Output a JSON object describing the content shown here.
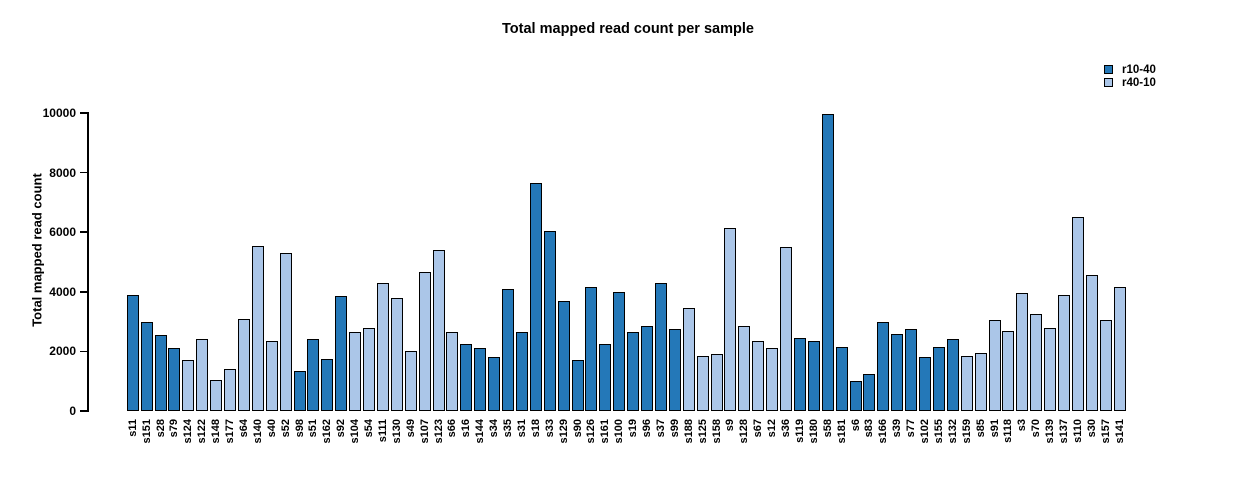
{
  "title": "Total mapped read count per sample",
  "chart_data": {
    "type": "bar",
    "title": "Total mapped read count per sample",
    "xlabel": "",
    "ylabel": "Total mapped read count",
    "ylim": [
      0,
      10000
    ],
    "yticks": [
      0,
      2000,
      4000,
      6000,
      8000,
      10000
    ],
    "grid": false,
    "legend": {
      "position": "top-right",
      "entries": [
        {
          "name": "r10-40",
          "color": "#2478b8"
        },
        {
          "name": "r40-10",
          "color": "#abc6e8"
        }
      ]
    },
    "bars": [
      {
        "label": "s11",
        "value": 3900,
        "series": "r10-40"
      },
      {
        "label": "s151",
        "value": 3000,
        "series": "r10-40"
      },
      {
        "label": "s28",
        "value": 2550,
        "series": "r10-40"
      },
      {
        "label": "s79",
        "value": 2100,
        "series": "r10-40"
      },
      {
        "label": "s124",
        "value": 1700,
        "series": "r40-10"
      },
      {
        "label": "s122",
        "value": 2400,
        "series": "r40-10"
      },
      {
        "label": "s148",
        "value": 1050,
        "series": "r40-10"
      },
      {
        "label": "s177",
        "value": 1400,
        "series": "r40-10"
      },
      {
        "label": "s64",
        "value": 3100,
        "series": "r40-10"
      },
      {
        "label": "s140",
        "value": 5550,
        "series": "r40-10"
      },
      {
        "label": "s40",
        "value": 2350,
        "series": "r40-10"
      },
      {
        "label": "s52",
        "value": 5300,
        "series": "r40-10"
      },
      {
        "label": "s98",
        "value": 1350,
        "series": "r10-40"
      },
      {
        "label": "s51",
        "value": 2400,
        "series": "r10-40"
      },
      {
        "label": "s162",
        "value": 1750,
        "series": "r10-40"
      },
      {
        "label": "s92",
        "value": 3850,
        "series": "r10-40"
      },
      {
        "label": "s104",
        "value": 2650,
        "series": "r40-10"
      },
      {
        "label": "s54",
        "value": 2800,
        "series": "r40-10"
      },
      {
        "label": "s111",
        "value": 4300,
        "series": "r40-10"
      },
      {
        "label": "s130",
        "value": 3800,
        "series": "r40-10"
      },
      {
        "label": "s49",
        "value": 2000,
        "series": "r40-10"
      },
      {
        "label": "s107",
        "value": 4650,
        "series": "r40-10"
      },
      {
        "label": "s123",
        "value": 5400,
        "series": "r40-10"
      },
      {
        "label": "s66",
        "value": 2650,
        "series": "r40-10"
      },
      {
        "label": "s16",
        "value": 2250,
        "series": "r10-40"
      },
      {
        "label": "s144",
        "value": 2100,
        "series": "r10-40"
      },
      {
        "label": "s34",
        "value": 1800,
        "series": "r10-40"
      },
      {
        "label": "s35",
        "value": 4100,
        "series": "r10-40"
      },
      {
        "label": "s31",
        "value": 2650,
        "series": "r10-40"
      },
      {
        "label": "s18",
        "value": 7650,
        "series": "r10-40"
      },
      {
        "label": "s33",
        "value": 6050,
        "series": "r10-40"
      },
      {
        "label": "s129",
        "value": 3700,
        "series": "r10-40"
      },
      {
        "label": "s90",
        "value": 1700,
        "series": "r10-40"
      },
      {
        "label": "s126",
        "value": 4150,
        "series": "r10-40"
      },
      {
        "label": "s161",
        "value": 2250,
        "series": "r10-40"
      },
      {
        "label": "s100",
        "value": 4000,
        "series": "r10-40"
      },
      {
        "label": "s19",
        "value": 2650,
        "series": "r10-40"
      },
      {
        "label": "s96",
        "value": 2850,
        "series": "r10-40"
      },
      {
        "label": "s37",
        "value": 4300,
        "series": "r10-40"
      },
      {
        "label": "s99",
        "value": 2750,
        "series": "r10-40"
      },
      {
        "label": "s188",
        "value": 3450,
        "series": "r40-10"
      },
      {
        "label": "s125",
        "value": 1850,
        "series": "r40-10"
      },
      {
        "label": "s158",
        "value": 1900,
        "series": "r40-10"
      },
      {
        "label": "s9",
        "value": 6150,
        "series": "r40-10"
      },
      {
        "label": "s128",
        "value": 2850,
        "series": "r40-10"
      },
      {
        "label": "s67",
        "value": 2350,
        "series": "r40-10"
      },
      {
        "label": "s12",
        "value": 2100,
        "series": "r40-10"
      },
      {
        "label": "s36",
        "value": 5500,
        "series": "r40-10"
      },
      {
        "label": "s119",
        "value": 2450,
        "series": "r10-40"
      },
      {
        "label": "s180",
        "value": 2350,
        "series": "r10-40"
      },
      {
        "label": "s58",
        "value": 9950,
        "series": "r10-40"
      },
      {
        "label": "s181",
        "value": 2150,
        "series": "r10-40"
      },
      {
        "label": "s6",
        "value": 1000,
        "series": "r10-40"
      },
      {
        "label": "s83",
        "value": 1250,
        "series": "r10-40"
      },
      {
        "label": "s166",
        "value": 3000,
        "series": "r10-40"
      },
      {
        "label": "s39",
        "value": 2600,
        "series": "r10-40"
      },
      {
        "label": "s77",
        "value": 2750,
        "series": "r10-40"
      },
      {
        "label": "s102",
        "value": 1800,
        "series": "r10-40"
      },
      {
        "label": "s155",
        "value": 2150,
        "series": "r10-40"
      },
      {
        "label": "s132",
        "value": 2400,
        "series": "r10-40"
      },
      {
        "label": "s159",
        "value": 1850,
        "series": "r40-10"
      },
      {
        "label": "s85",
        "value": 1950,
        "series": "r40-10"
      },
      {
        "label": "s91",
        "value": 3050,
        "series": "r40-10"
      },
      {
        "label": "s118",
        "value": 2700,
        "series": "r40-10"
      },
      {
        "label": "s3",
        "value": 3950,
        "series": "r40-10"
      },
      {
        "label": "s70",
        "value": 3250,
        "series": "r40-10"
      },
      {
        "label": "s139",
        "value": 2800,
        "series": "r40-10"
      },
      {
        "label": "s137",
        "value": 3900,
        "series": "r40-10"
      },
      {
        "label": "s110",
        "value": 6500,
        "series": "r40-10"
      },
      {
        "label": "s30",
        "value": 4550,
        "series": "r40-10"
      },
      {
        "label": "s157",
        "value": 3050,
        "series": "r40-10"
      },
      {
        "label": "s141",
        "value": 4150,
        "series": "r40-10"
      }
    ]
  }
}
